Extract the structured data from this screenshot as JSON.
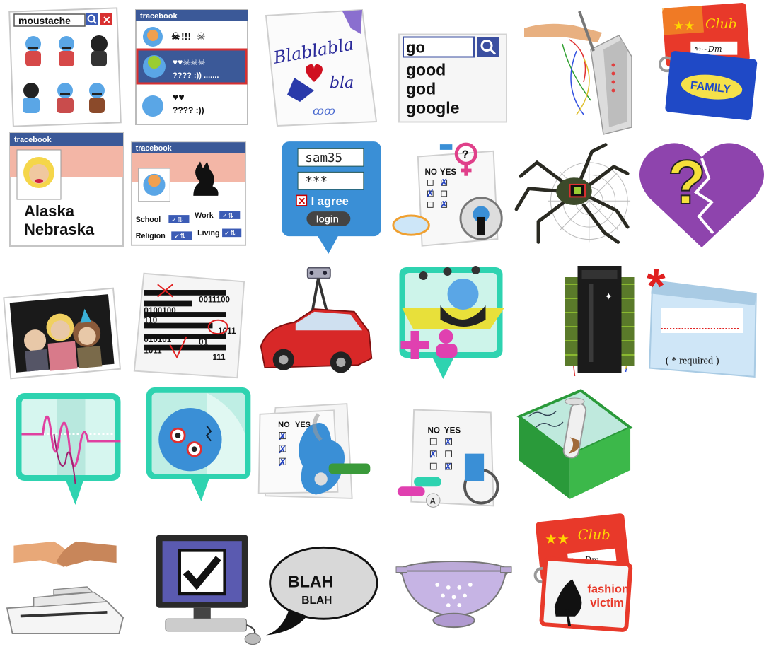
{
  "colors": {
    "tracebook_blue": "#3b5998",
    "bubble_blue": "#3a8fd6",
    "teal": "#2ed3b0",
    "purple_heart": "#8e44ad",
    "club_red": "#e8392a",
    "family_blue": "#1f49c6",
    "required_red": "#e02020"
  },
  "icons": [
    {
      "name": "moustache-search-icon",
      "search_text": "moustache"
    },
    {
      "name": "tracebook-chat-icon",
      "header": "tracebook",
      "row1": "!!!",
      "row2": "???? :)) .......",
      "row3": "???? :))"
    },
    {
      "name": "blablabla-note-icon",
      "line1": "Blablabla",
      "line2": "bla"
    },
    {
      "name": "search-suggestions-icon",
      "query": "go",
      "suggestions": [
        "good",
        "god",
        "google"
      ]
    },
    {
      "name": "router-hand-icon"
    },
    {
      "name": "club-family-cards-icon",
      "club": "Club",
      "family": "FAMILY"
    },
    {
      "name": "tracebook-profile-icon",
      "header": "tracebook",
      "line1": "Alaska",
      "line2": "Nebraska"
    },
    {
      "name": "tracebook-fields-icon",
      "header": "tracebook",
      "fields": [
        "School",
        "Work",
        "Religion",
        "Living"
      ]
    },
    {
      "name": "login-bubble-icon",
      "username": "sam35",
      "password": "***",
      "agree": "I agree",
      "button": "login"
    },
    {
      "name": "gender-survey-icon",
      "no": "NO",
      "yes": "YES"
    },
    {
      "name": "spider-web-icon"
    },
    {
      "name": "broken-heart-question-icon",
      "mark": "?"
    },
    {
      "name": "family-photo-icon"
    },
    {
      "name": "binary-document-icon",
      "lines": [
        "0011100",
        "0100100",
        "110",
        "1011",
        "01",
        "010101",
        "1011",
        "111"
      ]
    },
    {
      "name": "street-view-car-icon"
    },
    {
      "name": "add-user-bubble-icon"
    },
    {
      "name": "server-rack-icon"
    },
    {
      "name": "required-field-icon",
      "required": "( * required )"
    },
    {
      "name": "signal-wave-bubble-icon"
    },
    {
      "name": "sleeping-face-bubble-icon"
    },
    {
      "name": "smoking-survey-icon",
      "no": "NO",
      "yes": "YES"
    },
    {
      "name": "medical-survey-icon",
      "no": "NO",
      "yes": "YES",
      "pill": "A"
    },
    {
      "name": "test-tube-box-icon"
    },
    {
      "name": "handshake-yacht-icon"
    },
    {
      "name": "computer-checkbox-icon"
    },
    {
      "name": "blah-speech-bubble-icon",
      "line1": "BLAH",
      "line2": "BLAH"
    },
    {
      "name": "colander-icon"
    },
    {
      "name": "club-fashion-card-icon",
      "club": "Club",
      "line1": "fashion",
      "line2": "victim"
    }
  ]
}
